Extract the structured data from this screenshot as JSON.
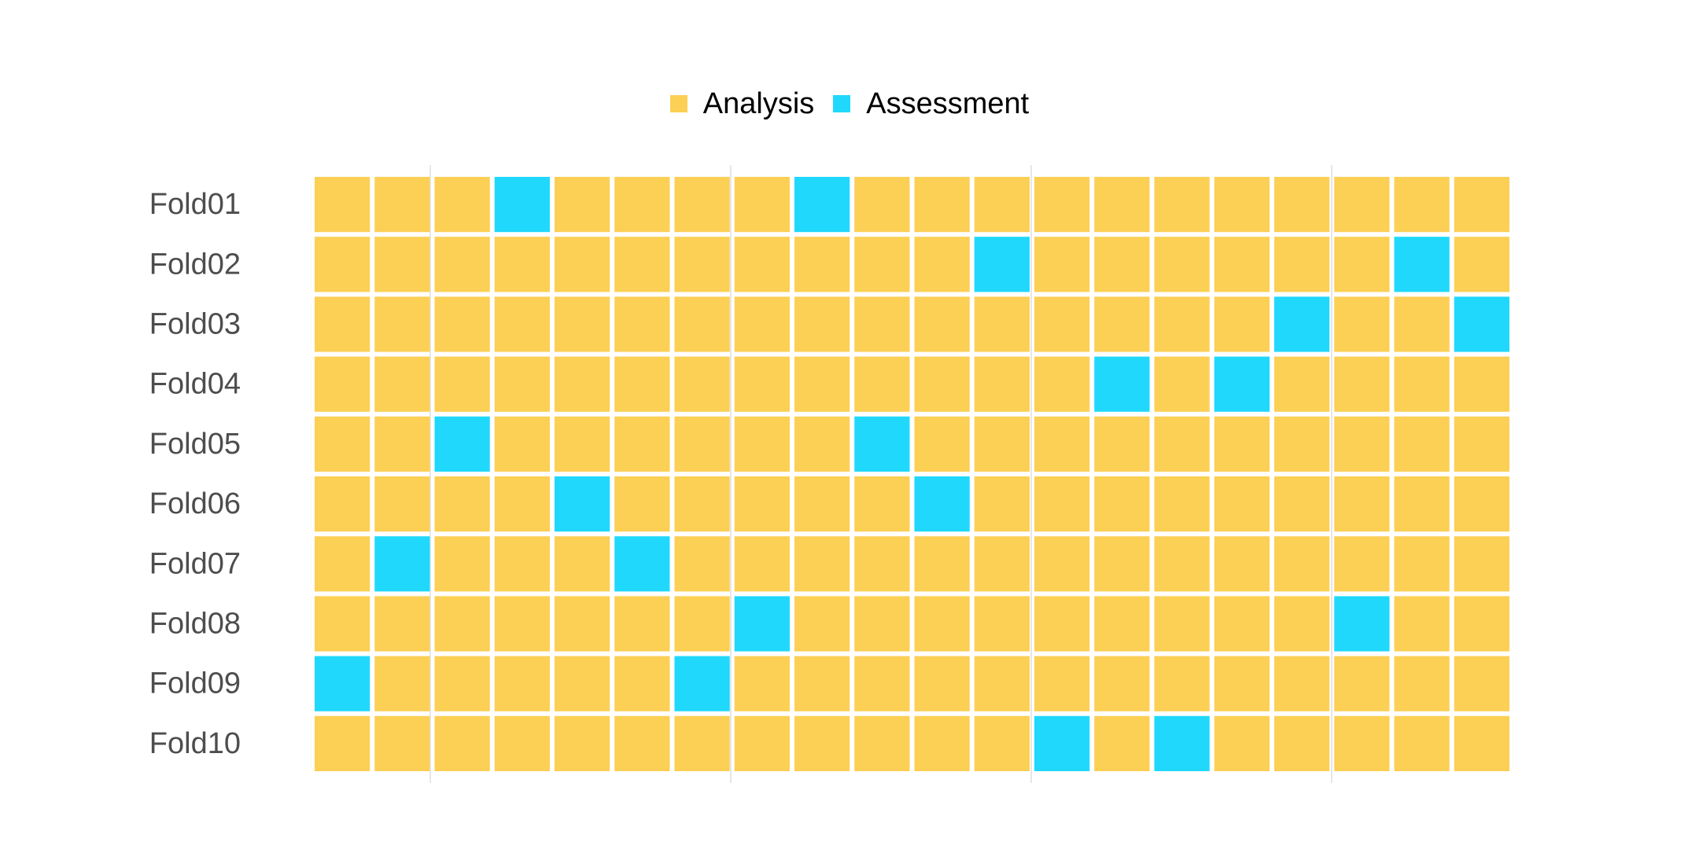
{
  "chart_data": {
    "type": "heatmap",
    "title": "",
    "xlabel": "",
    "ylabel": "",
    "legend": {
      "position": "top-center",
      "entries": [
        {
          "label": "Analysis",
          "color": "#FCCF55"
        },
        {
          "label": "Assessment",
          "color": "#20D8FC"
        }
      ]
    },
    "grid": true,
    "rows": [
      "Fold01",
      "Fold02",
      "Fold03",
      "Fold04",
      "Fold05",
      "Fold06",
      "Fold07",
      "Fold08",
      "Fold09",
      "Fold10"
    ],
    "columns": 20,
    "x_ticks": [],
    "assessment_columns": {
      "Fold01": [
        4,
        9
      ],
      "Fold02": [
        12,
        19
      ],
      "Fold03": [
        17,
        20
      ],
      "Fold04": [
        14,
        16
      ],
      "Fold05": [
        3,
        10
      ],
      "Fold06": [
        5,
        11
      ],
      "Fold07": [
        2,
        6
      ],
      "Fold08": [
        8,
        18
      ],
      "Fold09": [
        1,
        7
      ],
      "Fold10": [
        13,
        15
      ]
    },
    "colors": {
      "analysis": "#FCCF55",
      "assessment": "#20D8FC",
      "gridline": "#E6E6E6",
      "label": "#4D4D4D"
    }
  }
}
